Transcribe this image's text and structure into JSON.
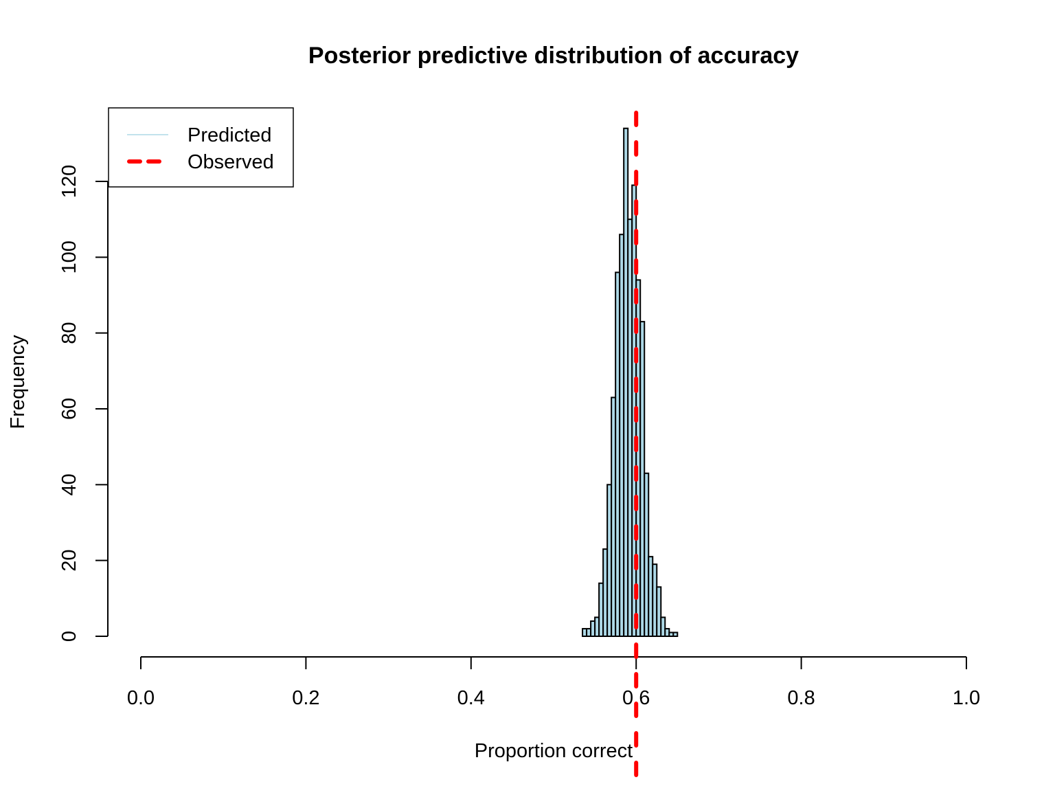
{
  "chart_data": {
    "type": "bar",
    "subtype": "histogram",
    "title": "Posterior predictive distribution of accuracy",
    "xlabel": "Proportion correct",
    "ylabel": "Frequency",
    "xlim": [
      0,
      1
    ],
    "ylim": [
      0,
      140
    ],
    "xticks": [
      "0.0",
      "0.2",
      "0.4",
      "0.6",
      "0.8",
      "1.0"
    ],
    "xtick_values": [
      0,
      0.2,
      0.4,
      0.6,
      0.8,
      1.0
    ],
    "yticks": [
      "0",
      "20",
      "40",
      "60",
      "80",
      "100",
      "120"
    ],
    "ytick_values": [
      0,
      20,
      40,
      60,
      80,
      100,
      120
    ],
    "bin_start": 0.535,
    "bin_width": 0.005,
    "counts": [
      2,
      2,
      4,
      5,
      14,
      23,
      40,
      63,
      96,
      106,
      134,
      110,
      119,
      94,
      83,
      43,
      21,
      19,
      13,
      5,
      2,
      1,
      1
    ],
    "bar_fill": "#add8e6",
    "observed": {
      "value": 0.6,
      "color": "#ff0000"
    },
    "legend": {
      "placement": "top-left",
      "entries": [
        {
          "label": "Predicted",
          "color": "#add8e6",
          "style": "solid"
        },
        {
          "label": "Observed",
          "color": "#ff0000",
          "style": "dashed"
        }
      ]
    }
  }
}
